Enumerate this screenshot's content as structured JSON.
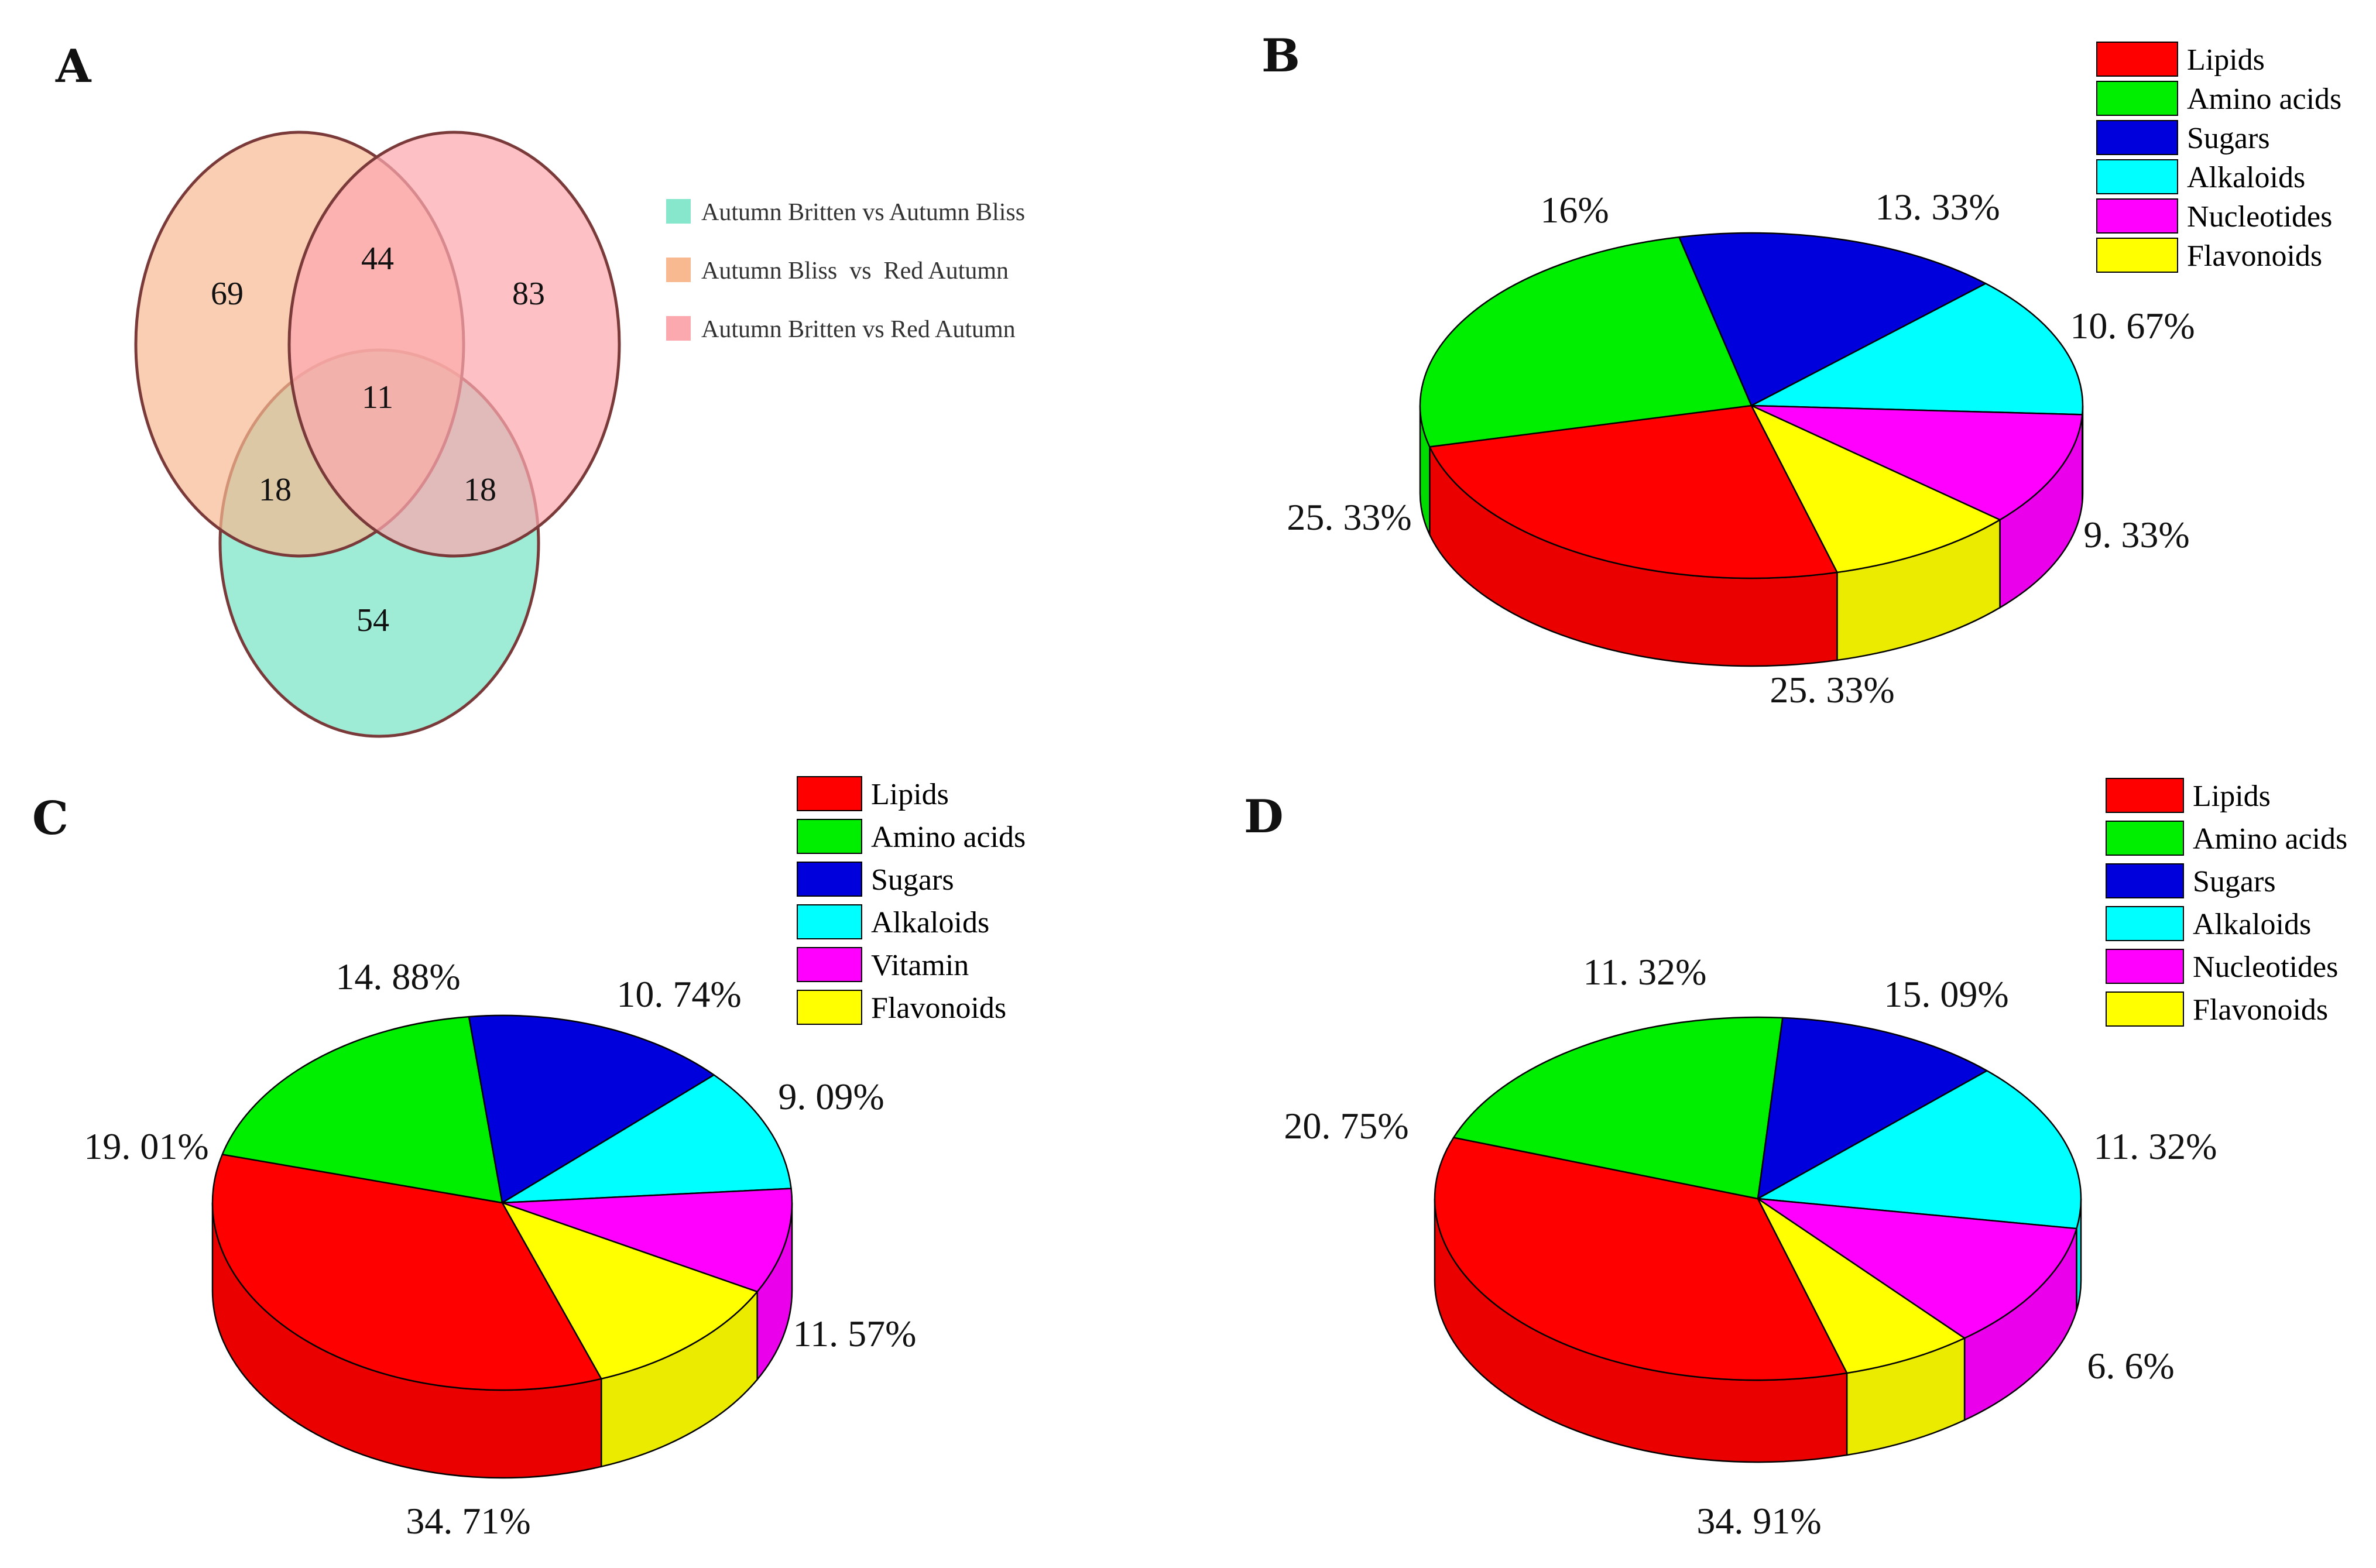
{
  "panels": {
    "A": "A",
    "B": "B",
    "C": "C",
    "D": "D"
  },
  "chart_data": [
    {
      "type": "venn",
      "panel": "A",
      "sets": [
        {
          "name": "Autumn Britten vs Autumn Bliss",
          "color": "#86e7cc"
        },
        {
          "name": "Autumn Bliss  vs  Red Autumn",
          "color": "#f8b991"
        },
        {
          "name": "Autumn Britten vs Red Autumn",
          "color": "#fba8ae"
        }
      ],
      "regions": [
        {
          "key": "bliss_red_only",
          "label": "69",
          "value": 69
        },
        {
          "key": "bliss_red__britten_red",
          "label": "44",
          "value": 44
        },
        {
          "key": "britten_red_only",
          "label": "83",
          "value": 83
        },
        {
          "key": "all_three",
          "label": "11",
          "value": 11
        },
        {
          "key": "bliss_red__britten_bliss",
          "label": "18",
          "value": 18
        },
        {
          "key": "britten_red__britten_bliss",
          "label": "18",
          "value": 18
        },
        {
          "key": "britten_bliss_only",
          "label": "54",
          "value": 54
        }
      ]
    },
    {
      "type": "pie",
      "panel": "B",
      "categories": [
        "Lipids",
        "Amino acids",
        "Sugars",
        "Alkaloids",
        "Nucleotides",
        "Flavonoids"
      ],
      "colors": [
        "#ff0000",
        "#00ee00",
        "#0000dd",
        "#00ffff",
        "#ff00ff",
        "#ffff00"
      ],
      "values": [
        25.33,
        25.33,
        16,
        13.33,
        10.67,
        9.33
      ],
      "labels": [
        "25. 33%",
        "25. 33%",
        "16%",
        "13. 33%",
        "10. 67%",
        "9. 33%"
      ]
    },
    {
      "type": "pie",
      "panel": "C",
      "categories": [
        "Lipids",
        "Amino acids",
        "Sugars",
        "Alkaloids",
        "Vitamin",
        "Flavonoids"
      ],
      "colors": [
        "#ff0000",
        "#00ee00",
        "#0000dd",
        "#00ffff",
        "#ff00ff",
        "#ffff00"
      ],
      "values": [
        34.71,
        19.01,
        14.88,
        10.74,
        9.09,
        11.57
      ],
      "labels": [
        "34. 71%",
        "19. 01%",
        "14. 88%",
        "10. 74%",
        "9. 09%",
        "11. 57%"
      ]
    },
    {
      "type": "pie",
      "panel": "D",
      "categories": [
        "Lipids",
        "Amino acids",
        "Sugars",
        "Alkaloids",
        "Nucleotides",
        "Flavonoids"
      ],
      "colors": [
        "#ff0000",
        "#00ee00",
        "#0000dd",
        "#00ffff",
        "#ff00ff",
        "#ffff00"
      ],
      "values": [
        34.91,
        20.75,
        11.32,
        15.09,
        11.32,
        6.6
      ],
      "labels": [
        "34. 91%",
        "20. 75%",
        "11. 32%",
        "15. 09%",
        "11. 32%",
        "6. 6%"
      ]
    }
  ]
}
